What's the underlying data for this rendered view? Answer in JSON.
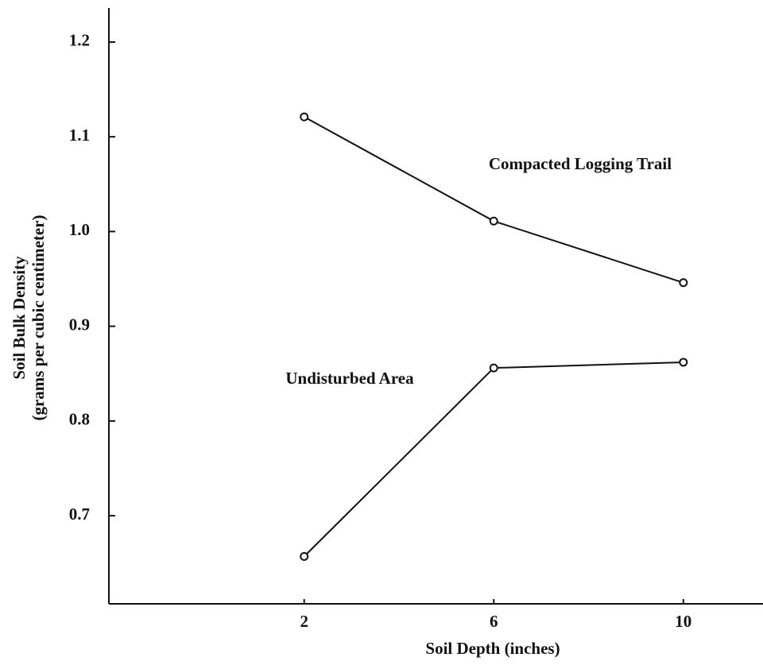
{
  "chart_data": {
    "type": "line",
    "x": [
      2,
      6,
      10
    ],
    "series": [
      {
        "name": "Compacted Logging Trail",
        "color": "#111111",
        "values": [
          1.121,
          1.011,
          0.946
        ]
      },
      {
        "name": "Undisturbed Area",
        "color": "#111111",
        "values": [
          0.657,
          0.856,
          0.862
        ]
      }
    ],
    "xlabel": "Soil Depth (inches)",
    "ylabel": [
      "Soil Bulk Density",
      "(grams per cubic centimeter)"
    ],
    "xlim": [
      -2.12,
      11.68
    ],
    "xticks": [
      2,
      6,
      10
    ],
    "ylim": [
      0.607,
      1.236
    ],
    "yticks": [
      0.7,
      0.8,
      0.9,
      {
        "value": 1,
        "label": "1.0"
      },
      1.1,
      1.2
    ]
  }
}
